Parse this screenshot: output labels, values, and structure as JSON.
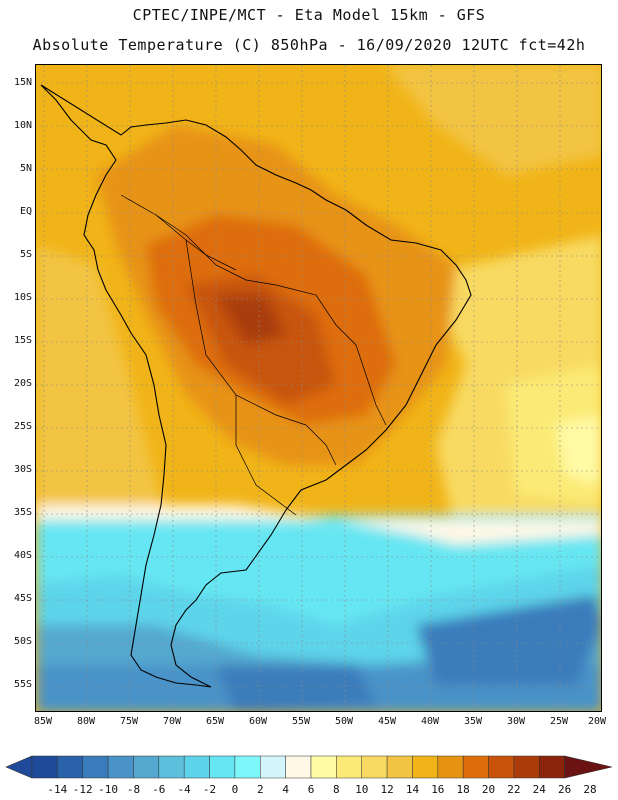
{
  "header": {
    "line1": "CPTEC/INPE/MCT -  Eta Model 15km - GFS",
    "line2": "Absolute Temperature (C) 850hPa - 16/09/2020 12UTC fct=42h"
  },
  "map": {
    "region": "South America",
    "variable": "Absolute Temperature (C) 850hPa",
    "lat_labels": [
      "15N",
      "10N",
      "5N",
      "EQ",
      "5S",
      "10S",
      "15S",
      "20S",
      "25S",
      "30S",
      "35S",
      "40S",
      "45S",
      "50S",
      "55S"
    ],
    "lon_labels": [
      "85W",
      "80W",
      "75W",
      "70W",
      "65W",
      "60W",
      "55W",
      "50W",
      "45W",
      "40W",
      "35W",
      "30W",
      "25W",
      "20W"
    ]
  },
  "colorbar": {
    "labels": [
      "-14",
      "-12",
      "-10",
      "-8",
      "-6",
      "-4",
      "-2",
      "0",
      "2",
      "4",
      "6",
      "8",
      "10",
      "12",
      "14",
      "16",
      "18",
      "20",
      "22",
      "24",
      "26",
      "28"
    ],
    "colors": [
      "#1f4a9a",
      "#2a62aa",
      "#3a7cbb",
      "#4a93c8",
      "#55a8cf",
      "#5cbfdb",
      "#5dd4ea",
      "#66e6f2",
      "#7ef7fb",
      "#d4f6fb",
      "#fff8e6",
      "#fffaa5",
      "#fbeb76",
      "#f8da62",
      "#f3c443",
      "#f1b418",
      "#e79313",
      "#de6d09",
      "#c8540b",
      "#a93c0a",
      "#8a240d",
      "#6b1212"
    ]
  }
}
